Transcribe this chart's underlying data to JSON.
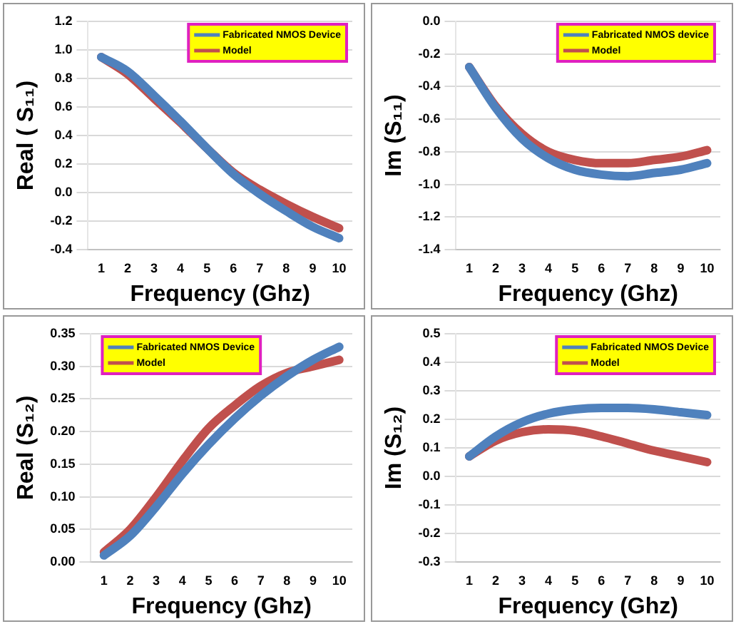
{
  "chart_data": [
    {
      "type": "line",
      "xlabel": "Frequency (Ghz)",
      "ylabel": "Real ( S₁₁)",
      "categories": [
        "1",
        "2",
        "3",
        "4",
        "5",
        "6",
        "7",
        "8",
        "9",
        "10"
      ],
      "ylim": [
        -0.4,
        1.2
      ],
      "yticks": [
        {
          "value": -0.4,
          "label": "-0.4"
        },
        {
          "value": -0.2,
          "label": "-0.2"
        },
        {
          "value": 0,
          "label": "0.0"
        },
        {
          "value": 0.2,
          "label": "0.2"
        },
        {
          "value": 0.4,
          "label": "0.4"
        },
        {
          "value": 0.6,
          "label": "0.6"
        },
        {
          "value": 0.8,
          "label": "0.8"
        },
        {
          "value": 1,
          "label": "1.0"
        },
        {
          "value": 1.2,
          "label": "1.2"
        }
      ],
      "grid": "y",
      "legend": "top right",
      "marker": "none",
      "series": [
        {
          "name": "Fabricated NMOS Device",
          "color": "#4f81bd",
          "values": [
            0.95,
            0.85,
            0.68,
            0.5,
            0.31,
            0.13,
            -0.01,
            -0.13,
            -0.24,
            -0.32
          ]
        },
        {
          "name": "Model",
          "color": "#c0504d",
          "values": [
            0.95,
            0.83,
            0.66,
            0.49,
            0.31,
            0.14,
            0.02,
            -0.08,
            -0.17,
            -0.25
          ]
        }
      ]
    },
    {
      "type": "line",
      "xlabel": "Frequency (Ghz)",
      "ylabel": "Im (S₁₁)",
      "categories": [
        "1",
        "2",
        "3",
        "4",
        "5",
        "6",
        "7",
        "8",
        "9",
        "10"
      ],
      "ylim": [
        -1.4,
        0
      ],
      "yticks": [
        {
          "value": -1.4,
          "label": "-1.4"
        },
        {
          "value": -1.2,
          "label": "-1.2"
        },
        {
          "value": -1,
          "label": "-1.0"
        },
        {
          "value": -0.8,
          "label": "-0.8"
        },
        {
          "value": -0.6,
          "label": "-0.6"
        },
        {
          "value": -0.4,
          "label": "-0.4"
        },
        {
          "value": -0.2,
          "label": "-0.2"
        },
        {
          "value": 0,
          "label": "0.0"
        }
      ],
      "grid": "y",
      "legend": "top right",
      "marker": "none",
      "series": [
        {
          "name": "Fabricated NMOS device",
          "color": "#4f81bd",
          "values": [
            -0.28,
            -0.53,
            -0.72,
            -0.84,
            -0.91,
            -0.94,
            -0.95,
            -0.93,
            -0.91,
            -0.87
          ]
        },
        {
          "name": "Model",
          "color": "#c0504d",
          "values": [
            -0.28,
            -0.52,
            -0.69,
            -0.8,
            -0.85,
            -0.87,
            -0.87,
            -0.85,
            -0.83,
            -0.79
          ]
        }
      ]
    },
    {
      "type": "line",
      "xlabel": "Frequency (Ghz)",
      "ylabel": "Real (S₁₂)",
      "categories": [
        "1",
        "2",
        "3",
        "4",
        "5",
        "6",
        "7",
        "8",
        "9",
        "10"
      ],
      "ylim": [
        0,
        0.35
      ],
      "yticks": [
        {
          "value": 0,
          "label": "0.00"
        },
        {
          "value": 0.05,
          "label": "0.05"
        },
        {
          "value": 0.1,
          "label": "0.10"
        },
        {
          "value": 0.15,
          "label": "0.15"
        },
        {
          "value": 0.2,
          "label": "0.20"
        },
        {
          "value": 0.25,
          "label": "0.25"
        },
        {
          "value": 0.3,
          "label": "0.30"
        },
        {
          "value": 0.35,
          "label": "0.35"
        }
      ],
      "grid": "y",
      "legend": "top left",
      "marker": "none",
      "series": [
        {
          "name": "Fabricated NMOS Device",
          "color": "#4f81bd",
          "values": [
            0.01,
            0.04,
            0.085,
            0.135,
            0.18,
            0.22,
            0.255,
            0.285,
            0.31,
            0.33
          ]
        },
        {
          "name": "Model",
          "color": "#c0504d",
          "values": [
            0.015,
            0.05,
            0.1,
            0.155,
            0.205,
            0.24,
            0.27,
            0.29,
            0.3,
            0.31
          ]
        }
      ]
    },
    {
      "type": "line",
      "xlabel": "Frequency (Ghz)",
      "ylabel": "Im (S₁₂)",
      "categories": [
        "1",
        "2",
        "3",
        "4",
        "5",
        "6",
        "7",
        "8",
        "9",
        "10"
      ],
      "ylim": [
        -0.3,
        0.5
      ],
      "yticks": [
        -0.3,
        -0.2,
        -0.1,
        {
          "value": 0,
          "label": "0.0"
        },
        0.1,
        0.2,
        0.3,
        0.4,
        0.5
      ],
      "grid": "y",
      "legend": "top right",
      "marker": "none",
      "series": [
        {
          "name": "Fabricated NMOS Device",
          "color": "#4f81bd",
          "values": [
            0.07,
            0.14,
            0.19,
            0.22,
            0.235,
            0.24,
            0.24,
            0.235,
            0.225,
            0.215
          ]
        },
        {
          "name": "Model",
          "color": "#c0504d",
          "values": [
            0.07,
            0.125,
            0.155,
            0.165,
            0.16,
            0.14,
            0.115,
            0.09,
            0.07,
            0.05
          ]
        }
      ]
    }
  ]
}
